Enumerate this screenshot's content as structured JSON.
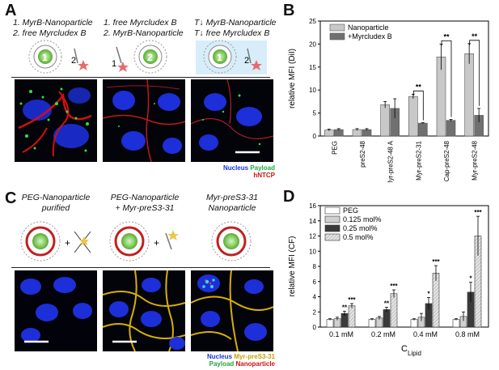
{
  "panels": {
    "A": {
      "letter": "A",
      "captions": [
        {
          "line1": "1. MyrB-Nanoparticle",
          "line2": "2. free Myrcludex B"
        },
        {
          "line1": "1. free Myrcludex B",
          "line2": "2. MyrB-Nanoparticle"
        },
        {
          "line1": "T↓ MyrB-Nanoparticle",
          "line2": "T↓  free Myrcludex B"
        }
      ],
      "particle_labels": [
        "1",
        "2",
        "1",
        "2",
        "1",
        "2"
      ],
      "legend": {
        "nucleus": "Nucleus",
        "payload": "Payload",
        "hntcp": "hNTCP"
      }
    },
    "C": {
      "letter": "C",
      "captions": [
        {
          "line1": "PEG-Nanoparticle",
          "line2": "purified"
        },
        {
          "line1": "PEG-Nanoparticle",
          "line2": "+ Myr-preS3-31"
        },
        {
          "line1": "Myr-preS3-31",
          "line2": "Nanoparticle"
        }
      ],
      "legend": {
        "nucleus": "Nucleus",
        "myr": "Myr-preS3-31",
        "payload": "Payload",
        "nanoparticle": "Nanoparticle"
      }
    },
    "B": {
      "letter": "B"
    },
    "D": {
      "letter": "D"
    }
  },
  "colors": {
    "nucleus": "#2a46ff",
    "payload": "#1fae3c",
    "hntcp": "#d01010",
    "myr": "#d8b000",
    "nanoparticle": "#d01010",
    "bar_light": "#c8c8c8",
    "bar_dark": "#707070"
  },
  "chart_data": [
    {
      "type": "bar",
      "panel": "B",
      "ylabel": "relative MFI (DiI)",
      "ylim": [
        0,
        25
      ],
      "yticks": [
        0,
        5,
        10,
        15,
        20,
        25
      ],
      "categories": [
        "PEG",
        "preS2-48",
        "Myr-preS2-48 A",
        "Myr-preS2-31",
        "Cap-preS2-48",
        "Myr-preS2-48"
      ],
      "series": [
        {
          "name": "Nanoparticle",
          "values": [
            1.3,
            1.4,
            6.8,
            8.6,
            17.2,
            17.9
          ],
          "errors": [
            0.2,
            0.2,
            0.7,
            0.5,
            2.8,
            2.2
          ]
        },
        {
          "name": "+Myrcludex B",
          "values": [
            1.4,
            1.4,
            6.0,
            2.8,
            3.4,
            4.5
          ],
          "errors": [
            0.2,
            0.2,
            2.1,
            0.1,
            0.2,
            1.5
          ]
        }
      ],
      "significance": [
        {
          "category": "Myr-preS2-31",
          "label": "**"
        },
        {
          "category": "Cap-preS2-48",
          "label": "**"
        },
        {
          "category": "Myr-preS2-48",
          "label": "**"
        }
      ],
      "legend_position": "top-left"
    },
    {
      "type": "bar",
      "panel": "D",
      "ylabel": "relative MFI (CF)",
      "xlabel": "C",
      "xlabel_sub": "Lipid",
      "ylim": [
        0,
        16
      ],
      "yticks": [
        0,
        2,
        4,
        6,
        8,
        10,
        12,
        14,
        16
      ],
      "categories": [
        "0.1 mM",
        "0.2 mM",
        "0.4 mM",
        "0.8 mM"
      ],
      "series": [
        {
          "name": "PEG",
          "values": [
            1.0,
            1.0,
            1.0,
            1.0
          ],
          "errors": [
            0.1,
            0.1,
            0.1,
            0.1
          ],
          "sig": [
            "",
            "",
            "",
            ""
          ]
        },
        {
          "name": "0.125 mol%",
          "values": [
            1.1,
            1.2,
            1.3,
            1.4
          ],
          "errors": [
            0.2,
            0.2,
            0.5,
            0.6
          ],
          "sig": [
            "",
            "",
            "",
            ""
          ]
        },
        {
          "name": "0.25 mol%",
          "values": [
            1.8,
            2.3,
            3.1,
            4.6
          ],
          "errors": [
            0.3,
            0.3,
            0.8,
            1.3
          ],
          "sig": [
            "**",
            "**",
            "*",
            "*"
          ]
        },
        {
          "name": "0.5 mol%",
          "values": [
            2.8,
            4.4,
            7.1,
            12.0
          ],
          "errors": [
            0.3,
            0.5,
            1.0,
            2.6
          ],
          "sig": [
            "***",
            "***",
            "***",
            "***"
          ]
        }
      ],
      "legend_position": "top-left"
    }
  ]
}
